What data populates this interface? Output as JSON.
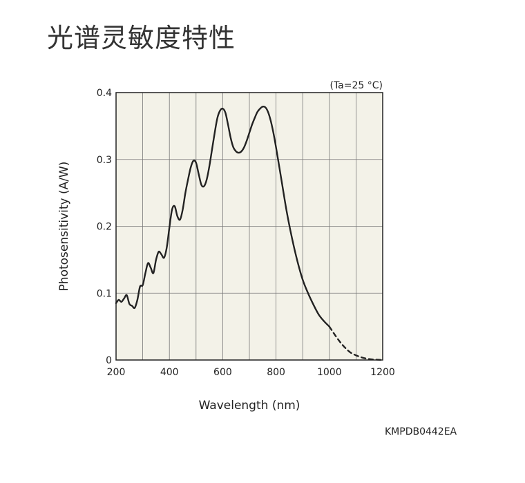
{
  "page": {
    "title": "光谱灵敏度特性",
    "figure_code": "KMPDB0442EA"
  },
  "chart_data": {
    "type": "line",
    "title": "",
    "condition": "(Ta=25 °C)",
    "xlabel": "Wavelength (nm)",
    "ylabel": "Photosensitivity (A/W)",
    "xlim": [
      200,
      1200
    ],
    "ylim": [
      0,
      0.4
    ],
    "xticks": [
      200,
      400,
      600,
      800,
      1000,
      1200
    ],
    "xtick_labels": [
      "200",
      "400",
      "600",
      "800",
      "1000",
      "1200"
    ],
    "yticks": [
      0,
      0.1,
      0.2,
      0.3,
      0.4
    ],
    "ytick_labels": [
      "0",
      "0.1",
      "0.2",
      "0.3",
      "0.4"
    ],
    "xgrid_step": 100,
    "grid": true,
    "background": "#f3f2e8",
    "line_color": "#222222",
    "series": [
      {
        "style": "solid",
        "x": [
          200,
          210,
          220,
          230,
          240,
          250,
          260,
          270,
          280,
          290,
          300,
          310,
          320,
          330,
          340,
          350,
          360,
          370,
          380,
          390,
          400,
          410,
          420,
          430,
          440,
          450,
          460,
          470,
          480,
          490,
          500,
          510,
          520,
          530,
          540,
          550,
          560,
          570,
          580,
          590,
          600,
          610,
          620,
          630,
          640,
          650,
          660,
          670,
          680,
          690,
          700,
          710,
          720,
          730,
          740,
          750,
          760,
          770,
          780,
          790,
          800,
          820,
          840,
          860,
          880,
          900,
          920,
          940,
          960,
          980,
          1000
        ],
        "y": [
          0.085,
          0.09,
          0.087,
          0.092,
          0.097,
          0.084,
          0.081,
          0.078,
          0.09,
          0.11,
          0.112,
          0.13,
          0.145,
          0.138,
          0.13,
          0.15,
          0.162,
          0.158,
          0.153,
          0.168,
          0.198,
          0.225,
          0.23,
          0.215,
          0.21,
          0.225,
          0.25,
          0.27,
          0.288,
          0.298,
          0.295,
          0.278,
          0.262,
          0.26,
          0.27,
          0.29,
          0.315,
          0.34,
          0.362,
          0.373,
          0.376,
          0.37,
          0.352,
          0.332,
          0.318,
          0.312,
          0.31,
          0.312,
          0.318,
          0.328,
          0.34,
          0.352,
          0.362,
          0.371,
          0.376,
          0.379,
          0.378,
          0.371,
          0.358,
          0.34,
          0.318,
          0.27,
          0.222,
          0.182,
          0.148,
          0.12,
          0.1,
          0.083,
          0.068,
          0.058,
          0.05
        ]
      },
      {
        "style": "dashed",
        "x": [
          1000,
          1020,
          1040,
          1060,
          1080,
          1100,
          1120,
          1140,
          1160,
          1180,
          1200
        ],
        "y": [
          0.05,
          0.038,
          0.027,
          0.018,
          0.011,
          0.007,
          0.004,
          0.002,
          0.001,
          0.0005,
          0.0
        ]
      }
    ]
  }
}
